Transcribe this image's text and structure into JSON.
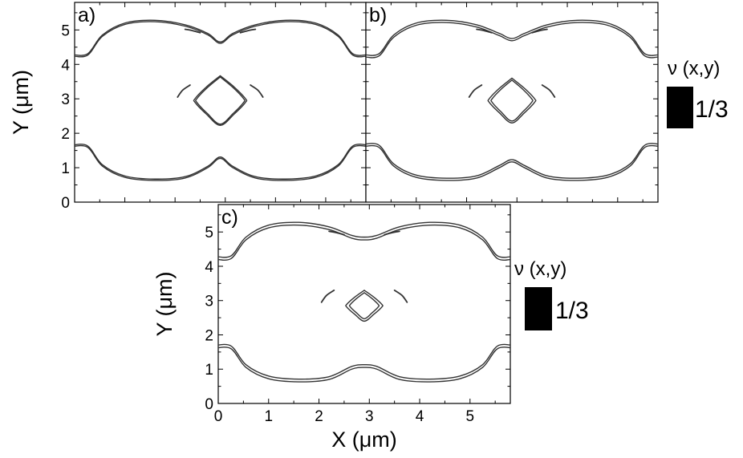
{
  "chart_data": [
    {
      "type": "contour",
      "panel_label": "a)",
      "xlabel": "",
      "ylabel": "Y (μm)",
      "xlim": [
        0,
        5.8
      ],
      "ylim": [
        0,
        5.8
      ],
      "x_ticks": [],
      "y_ticks": [
        "0",
        "1",
        "2",
        "3",
        "4",
        "5"
      ],
      "contour_level": "1/3",
      "pair_spacing": 0.025,
      "diamond": {
        "center": [
          2.9,
          2.95
        ],
        "half_width": 0.5,
        "half_height": 0.72
      },
      "arcs_cusp_y": 4.65,
      "arcs_base_y": 1.27
    },
    {
      "type": "contour",
      "panel_label": "b)",
      "xlabel": "",
      "ylabel": "",
      "xlim": [
        0,
        5.8
      ],
      "ylim": [
        0,
        5.8
      ],
      "x_ticks": [],
      "y_ticks": [],
      "contour_level": "1/3",
      "pair_spacing": 0.04,
      "diamond": {
        "center": [
          2.9,
          2.95
        ],
        "half_width": 0.45,
        "half_height": 0.65
      },
      "arcs_cusp_y": 4.75,
      "arcs_base_y": 1.17
    },
    {
      "type": "contour",
      "panel_label": "c)",
      "xlabel": "X (μm)",
      "ylabel": "Y (μm)",
      "xlim": [
        0,
        5.8
      ],
      "ylim": [
        0,
        5.8
      ],
      "x_ticks": [
        "0",
        "1",
        "2",
        "3",
        "4",
        "5"
      ],
      "y_ticks": [
        "0",
        "1",
        "2",
        "3",
        "4",
        "5"
      ],
      "contour_level": "1/3",
      "pair_spacing": 0.05,
      "diamond": {
        "center": [
          2.9,
          2.85
        ],
        "half_width": 0.35,
        "half_height": 0.45
      },
      "arcs_cusp_y": 4.85,
      "arcs_base_y": 1.05
    }
  ],
  "legends": [
    {
      "title": "ν (x,y)",
      "value_label": "1/3",
      "swatch_color": "#000000"
    },
    {
      "title": "ν (x,y)",
      "value_label": "1/3",
      "swatch_color": "#000000"
    }
  ],
  "colors": {
    "line": "#333333",
    "background": "#ffffff",
    "axis": "#000000"
  }
}
